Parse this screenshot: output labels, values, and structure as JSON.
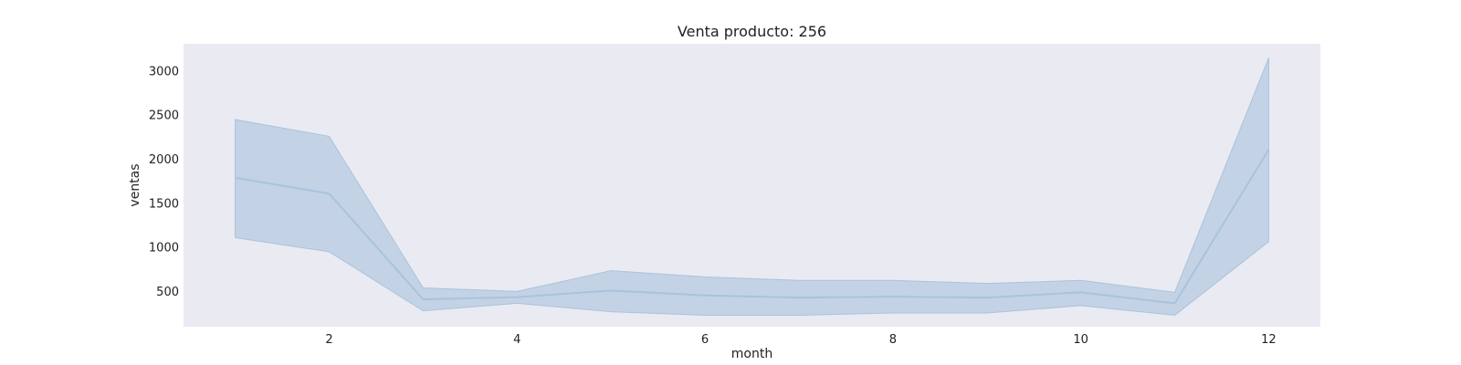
{
  "chart_data": {
    "type": "line",
    "title": "Venta producto: 256",
    "xlabel": "month",
    "ylabel": "ventas",
    "xlim": [
      0.45,
      12.55
    ],
    "ylim": [
      110,
      3320
    ],
    "xticks": [
      2,
      4,
      6,
      8,
      10,
      12
    ],
    "yticks": [
      500,
      1000,
      1500,
      2000,
      2500,
      3000
    ],
    "grid": false,
    "colors": {
      "background": "#eaeaf2",
      "line": "#a9c3dc",
      "band_fill": "#a9c3dc",
      "band_edge": "#a9c3dc"
    },
    "series": [
      {
        "x": [
          1,
          2,
          3,
          4,
          5,
          6,
          7,
          8,
          9,
          10,
          11,
          12
        ],
        "values": [
          1800,
          1620,
          420,
          445,
          520,
          465,
          440,
          450,
          440,
          500,
          375,
          2120
        ],
        "lower": [
          1120,
          960,
          290,
          375,
          280,
          240,
          240,
          265,
          265,
          350,
          240,
          1075
        ],
        "upper": [
          2460,
          2270,
          550,
          510,
          745,
          675,
          635,
          635,
          600,
          635,
          500,
          3160
        ]
      }
    ]
  }
}
